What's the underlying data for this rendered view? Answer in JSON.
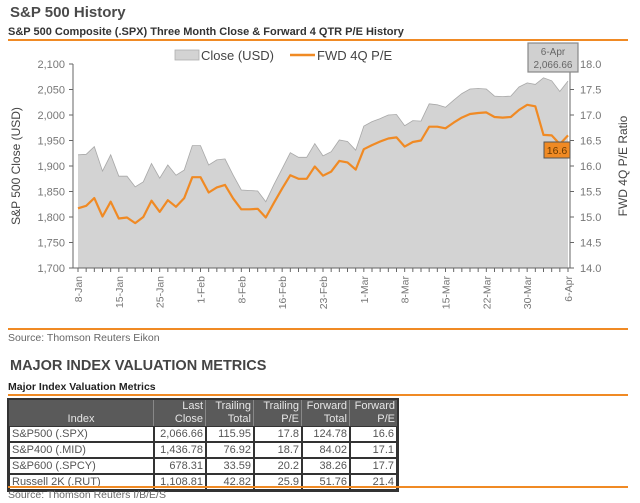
{
  "header": {
    "title": "S&P 500 History",
    "chart_subtitle": "S&P 500 Composite (.SPX) Three Month Close & Forward 4 QTR P/E History"
  },
  "chart_source": "Source: Thomson Reuters Eikon",
  "chart_data": {
    "type": "area+line",
    "title": "S&P 500 Composite (.SPX) Three Month Close & Forward 4 QTR P/E History",
    "ylabel": "S&P 500 Close (USD)",
    "y2label": "FWD 4Q P/E Ratio",
    "ylim": [
      1700,
      2100
    ],
    "y2lim": [
      14.0,
      18.0
    ],
    "yticks": [
      "1,700",
      "1,750",
      "1,800",
      "1,850",
      "1,900",
      "1,950",
      "2,000",
      "2,050",
      "2,100"
    ],
    "y2ticks": [
      "14.0",
      "14.5",
      "15.0",
      "15.5",
      "16.0",
      "16.5",
      "17.0",
      "17.5",
      "18.0"
    ],
    "xtick_labels": [
      "8-Jan",
      "15-Jan",
      "25-Jan",
      "1-Feb",
      "8-Feb",
      "16-Feb",
      "23-Feb",
      "1-Mar",
      "8-Mar",
      "15-Mar",
      "22-Mar",
      "30-Mar",
      "6-Apr"
    ],
    "xtick_every": 5,
    "legend": [
      "Close (USD)",
      "FWD 4Q P/E"
    ],
    "legend_position": "top-center",
    "grid": false,
    "colors": {
      "close_fill": "#d3d3d3",
      "close_line": "#a8a8a8",
      "pe_line": "#f08a24"
    },
    "series": [
      {
        "name": "Close (USD)",
        "type": "area",
        "axis": "left",
        "values": [
          1922,
          1923,
          1938,
          1890,
          1922,
          1880,
          1880,
          1859,
          1869,
          1905,
          1876,
          1902,
          1882,
          1892,
          1940,
          1940,
          1902,
          1912,
          1914,
          1882,
          1853,
          1852,
          1851,
          1830,
          1864,
          1895,
          1926,
          1917,
          1917,
          1944,
          1920,
          1928,
          1951,
          1948,
          1931,
          1978,
          1987,
          1993,
          2000,
          2001,
          1979,
          1989,
          1988,
          2022,
          2020,
          2015,
          2029,
          2042,
          2051,
          2052,
          2051,
          2037,
          2036,
          2037,
          2055,
          2063,
          2060,
          2073,
          2067,
          2046,
          2066.66
        ]
      },
      {
        "name": "FWD 4Q P/E",
        "type": "line",
        "axis": "right",
        "values": [
          15.17,
          15.22,
          15.37,
          15.01,
          15.3,
          14.97,
          14.99,
          14.88,
          15.0,
          15.32,
          15.1,
          15.33,
          15.2,
          15.37,
          15.78,
          15.78,
          15.48,
          15.58,
          15.63,
          15.36,
          15.15,
          15.15,
          15.16,
          14.99,
          15.28,
          15.56,
          15.82,
          15.75,
          15.75,
          15.99,
          15.81,
          15.89,
          16.1,
          16.07,
          15.93,
          16.33,
          16.41,
          16.48,
          16.54,
          16.56,
          16.38,
          16.47,
          16.5,
          16.77,
          16.77,
          16.74,
          16.85,
          16.95,
          17.02,
          17.04,
          17.05,
          16.96,
          16.95,
          16.96,
          17.1,
          17.2,
          17.17,
          16.61,
          16.6,
          16.43,
          16.6
        ]
      }
    ],
    "annotations": [
      {
        "series": "Close (USD)",
        "text_date": "6-Apr",
        "text_value": "2,066.66"
      },
      {
        "series": "FWD 4Q P/E",
        "text": "16.6"
      }
    ]
  },
  "section": {
    "title": "MAJOR INDEX VALUATION METRICS",
    "table_title": "Major Index Valuation Metrics"
  },
  "table": {
    "headers": [
      [
        "",
        "Index"
      ],
      [
        "Last",
        "Close"
      ],
      [
        "Trailing",
        "Total"
      ],
      [
        "Trailing",
        "P/E"
      ],
      [
        "Forward",
        "Total"
      ],
      [
        "Forward",
        "P/E"
      ]
    ],
    "rows": [
      [
        "S&P500 (.SPX)",
        "2,066.66",
        "115.95",
        "17.8",
        "124.78",
        "16.6"
      ],
      [
        "S&P400 (.MID)",
        "1,436.78",
        "76.92",
        "18.7",
        "84.02",
        "17.1"
      ],
      [
        "S&P600 (.SPCY)",
        "678.31",
        "33.59",
        "20.2",
        "38.26",
        "17.7"
      ],
      [
        "Russell 2K (.RUT)",
        "1,108.81",
        "42.82",
        "25.9",
        "51.76",
        "21.4"
      ]
    ]
  },
  "table_source": "Source: Thomson Reuters I/B/E/S"
}
